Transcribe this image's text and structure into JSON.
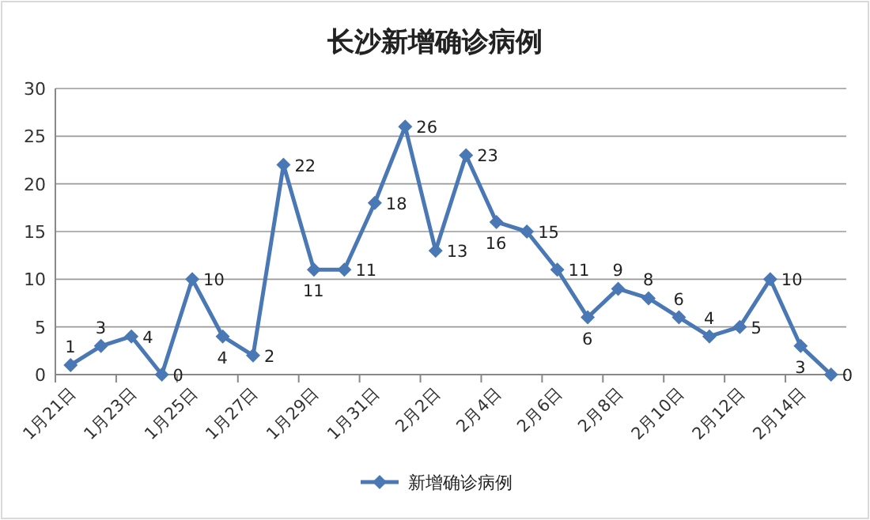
{
  "chart_data": {
    "type": "line",
    "title": "长沙新增确诊病例",
    "categories": [
      "1月21日",
      null,
      "1月23日",
      null,
      "1月25日",
      null,
      "1月27日",
      null,
      "1月29日",
      null,
      "1月31日",
      null,
      "2月2日",
      null,
      "2月4日",
      null,
      "2月6日",
      null,
      "2月8日",
      null,
      "2月10日",
      null,
      "2月12日",
      null,
      "2月14日",
      null
    ],
    "series": [
      {
        "name": "新增确诊病例",
        "color": "#4a78b4",
        "values": [
          1,
          3,
          4,
          0,
          10,
          4,
          2,
          22,
          11,
          11,
          18,
          26,
          13,
          23,
          16,
          15,
          11,
          6,
          9,
          8,
          6,
          4,
          5,
          10,
          3,
          0
        ]
      }
    ],
    "ylim": [
      0,
      30
    ],
    "yticks": [
      0,
      5,
      10,
      15,
      20,
      25,
      30
    ],
    "grid": "y",
    "legend": "bottom",
    "marker": "diamond",
    "line_style": "solid",
    "data_labels": true
  }
}
